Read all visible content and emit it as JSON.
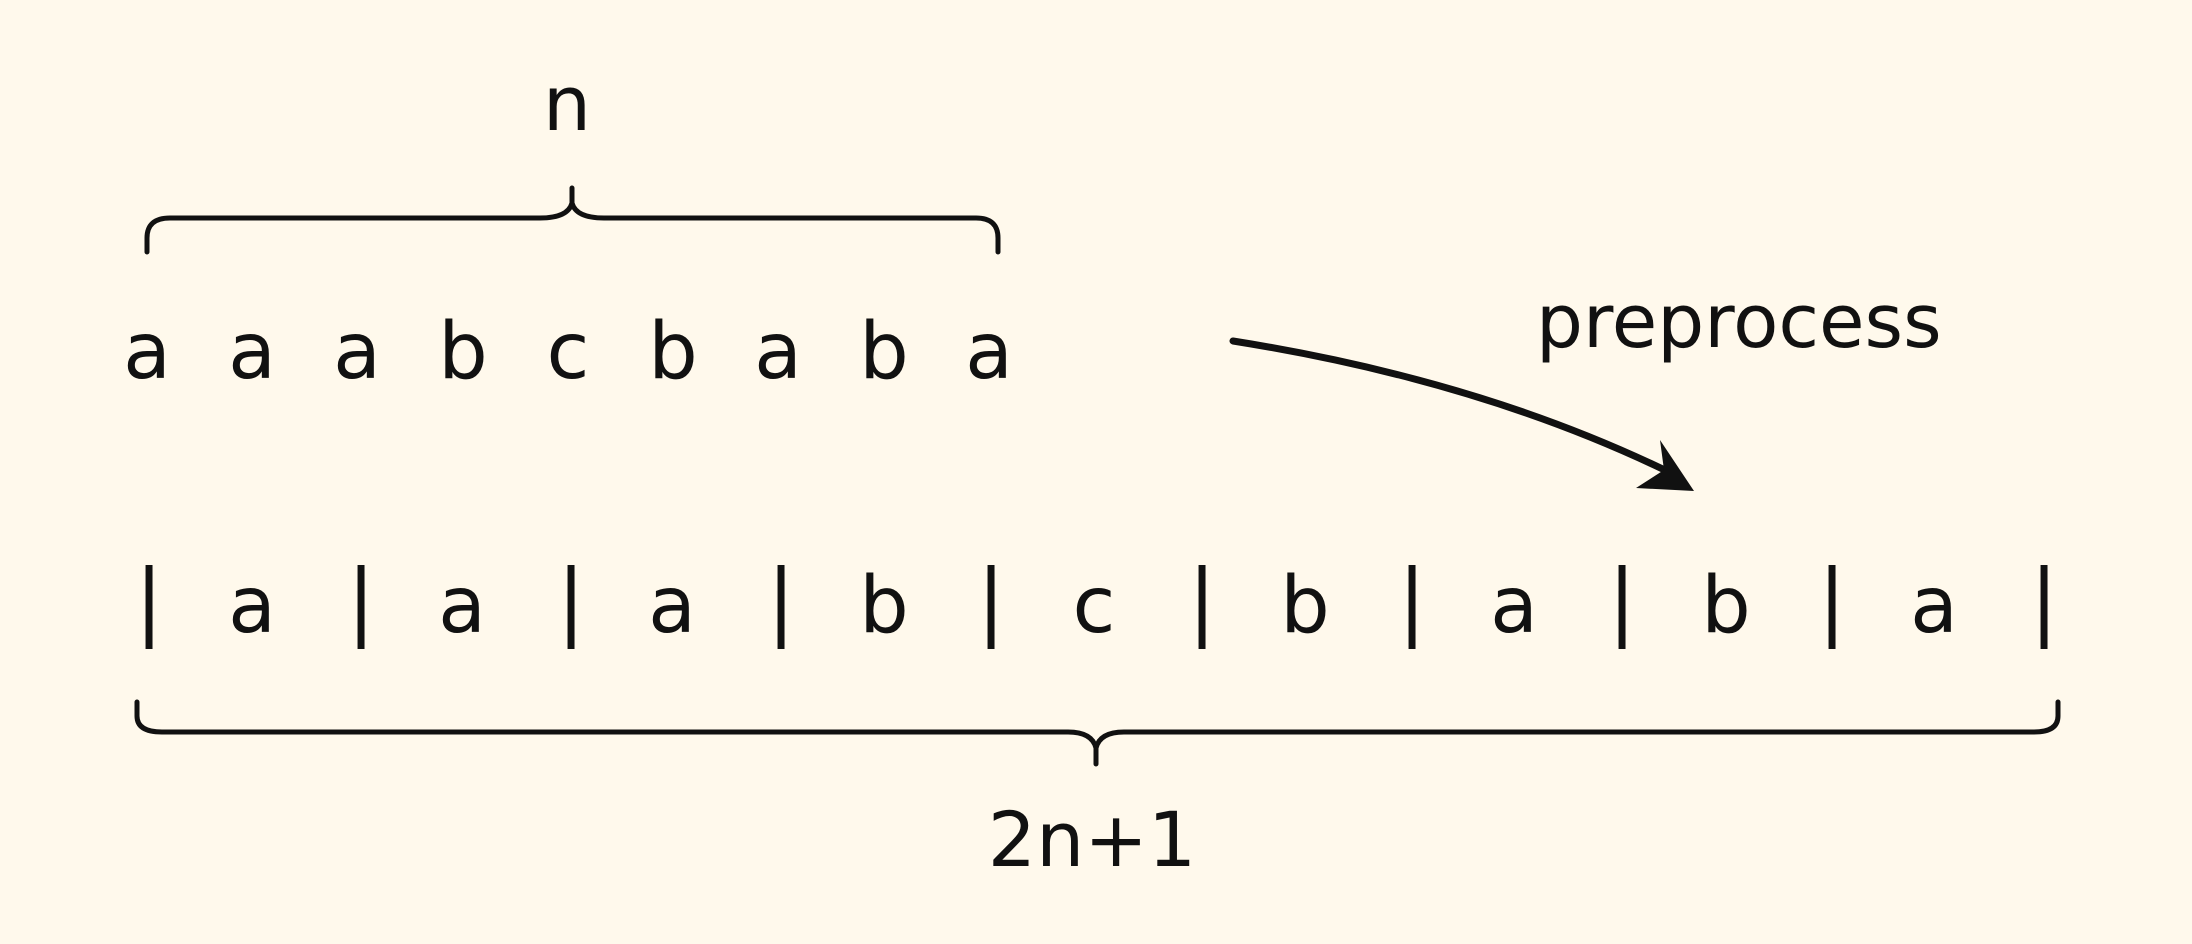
{
  "labels": {
    "top_count": "n",
    "bottom_count": "2n+1",
    "arrow_label": "preprocess"
  },
  "original": {
    "characters": [
      "a",
      "a",
      "a",
      "b",
      "c",
      "b",
      "a",
      "b",
      "a"
    ]
  },
  "processed": {
    "separator": "|",
    "characters": [
      "a",
      "a",
      "a",
      "b",
      "c",
      "b",
      "a",
      "b",
      "a"
    ]
  },
  "colors": {
    "background": "#fff9ec",
    "ink": "#111111"
  }
}
